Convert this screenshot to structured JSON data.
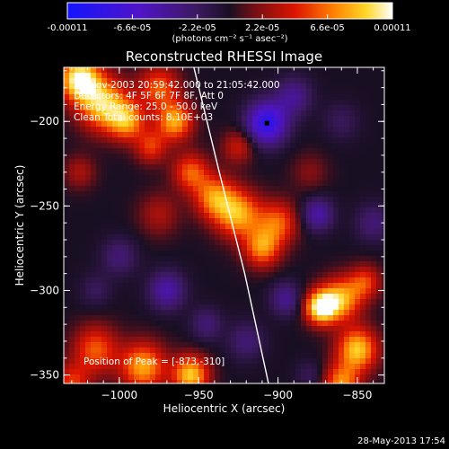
{
  "chart_data": {
    "type": "heatmap",
    "title": "Reconstructed RHESSI Image",
    "colorbar": {
      "ticks": [
        "-0.00011",
        "-6.6e-05",
        "-2.2e-05",
        "2.2e-05",
        "6.6e-05",
        "0.00011"
      ],
      "units": "(photons cm⁻² s⁻¹ asec⁻²)",
      "range": [
        -0.00011,
        0.00011
      ]
    },
    "xlabel": "Heliocentric X (arcsec)",
    "ylabel": "Heliocentric Y (arcsec)",
    "xlim": [
      -1035,
      -833
    ],
    "ylim": [
      -355,
      -168
    ],
    "xticks": [
      -1000,
      -950,
      -900,
      -850
    ],
    "yticks": [
      -200,
      -250,
      -300,
      -350
    ],
    "annotations": [
      "16-Nov-2003 20:59:42.000 to 21:05:42.000",
      "Detectors: 4F 5F 6F 7F 8F, Att 0",
      "Energy Range: 25.0 - 50.0 keV",
      "Clean     Total counts: 8.10E+03"
    ],
    "peak_label": "Position of Peak = [-873,-310]",
    "peak": [
      -873,
      -310
    ],
    "minimum_marker": [
      -907,
      -201
    ],
    "limb_curve": [
      [
        -953,
        -168
      ],
      [
        -937,
        -230
      ],
      [
        -921,
        -290
      ],
      [
        -906,
        -355
      ]
    ],
    "blobs": [
      {
        "x": -1025,
        "y": -175,
        "v": 0.00011,
        "s": 9
      },
      {
        "x": -1010,
        "y": -190,
        "v": 9e-05,
        "s": 11
      },
      {
        "x": -995,
        "y": -200,
        "v": 7e-05,
        "s": 8
      },
      {
        "x": -975,
        "y": -180,
        "v": 6e-05,
        "s": 9
      },
      {
        "x": -965,
        "y": -200,
        "v": 8e-05,
        "s": 8
      },
      {
        "x": -980,
        "y": -215,
        "v": 5e-05,
        "s": 7
      },
      {
        "x": -955,
        "y": -230,
        "v": 6e-05,
        "s": 8
      },
      {
        "x": -1025,
        "y": -230,
        "v": 3e-05,
        "s": 7
      },
      {
        "x": -975,
        "y": -255,
        "v": 3e-05,
        "s": 9
      },
      {
        "x": -940,
        "y": -245,
        "v": 7e-05,
        "s": 9
      },
      {
        "x": -925,
        "y": -255,
        "v": 8e-05,
        "s": 10
      },
      {
        "x": -900,
        "y": -260,
        "v": 6e-05,
        "s": 9
      },
      {
        "x": -910,
        "y": -275,
        "v": 7e-05,
        "s": 8
      },
      {
        "x": -925,
        "y": -215,
        "v": 4e-05,
        "s": 7
      },
      {
        "x": -880,
        "y": -230,
        "v": 2e-05,
        "s": 8
      },
      {
        "x": -873,
        "y": -310,
        "v": 0.00011,
        "s": 7
      },
      {
        "x": -860,
        "y": -305,
        "v": 8e-05,
        "s": 9
      },
      {
        "x": -850,
        "y": -335,
        "v": 9e-05,
        "s": 9
      },
      {
        "x": -845,
        "y": -295,
        "v": 5e-05,
        "s": 7
      },
      {
        "x": -860,
        "y": -355,
        "v": 7e-05,
        "s": 8
      },
      {
        "x": -1015,
        "y": -335,
        "v": 6e-05,
        "s": 10
      },
      {
        "x": -985,
        "y": -345,
        "v": 8e-05,
        "s": 10
      },
      {
        "x": -955,
        "y": -350,
        "v": 9e-05,
        "s": 8
      },
      {
        "x": -1030,
        "y": -355,
        "v": 5e-05,
        "s": 8
      },
      {
        "x": -1000,
        "y": -280,
        "v": -3e-05,
        "s": 8
      },
      {
        "x": -1015,
        "y": -300,
        "v": -2e-05,
        "s": 7
      },
      {
        "x": -970,
        "y": -300,
        "v": -5e-05,
        "s": 8
      },
      {
        "x": -945,
        "y": -320,
        "v": -3e-05,
        "s": 7
      },
      {
        "x": -907,
        "y": -201,
        "v": -9e-05,
        "s": 9
      },
      {
        "x": -890,
        "y": -185,
        "v": -4e-05,
        "s": 8
      },
      {
        "x": -860,
        "y": -200,
        "v": -2e-05,
        "s": 8
      },
      {
        "x": -875,
        "y": -255,
        "v": -5e-05,
        "s": 7
      },
      {
        "x": -895,
        "y": -305,
        "v": -4e-05,
        "s": 7
      },
      {
        "x": -920,
        "y": -330,
        "v": -3e-05,
        "s": 8
      },
      {
        "x": -840,
        "y": -260,
        "v": -3e-05,
        "s": 8
      },
      {
        "x": -880,
        "y": -350,
        "v": -2e-05,
        "s": 6
      }
    ]
  },
  "footer": {
    "timestamp": "28-May-2013 17:54"
  }
}
